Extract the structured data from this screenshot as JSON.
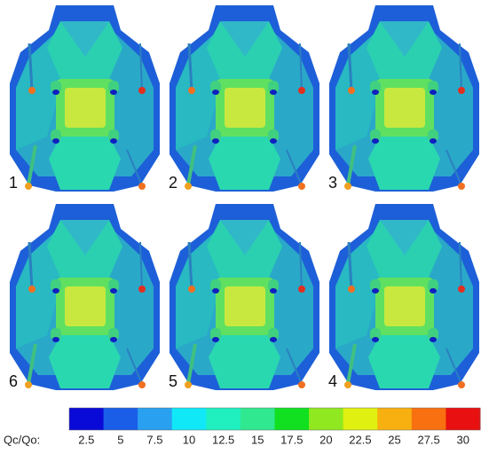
{
  "panels": [
    {
      "label": "1"
    },
    {
      "label": "2"
    },
    {
      "label": "3"
    },
    {
      "label": "6"
    },
    {
      "label": "5"
    },
    {
      "label": "4"
    }
  ],
  "colorbar": {
    "label": "Qc/Qo:",
    "ticks": [
      2.5,
      5,
      7.5,
      10,
      12.5,
      15,
      17.5,
      20,
      22.5,
      25,
      27.5,
      30
    ],
    "colors": [
      "#0a0ad8",
      "#1a5ee8",
      "#2aa0f0",
      "#10e8f8",
      "#20f0c0",
      "#30e890",
      "#10e020",
      "#90e820",
      "#e0f010",
      "#f8b010",
      "#f87010",
      "#e81010"
    ]
  }
}
